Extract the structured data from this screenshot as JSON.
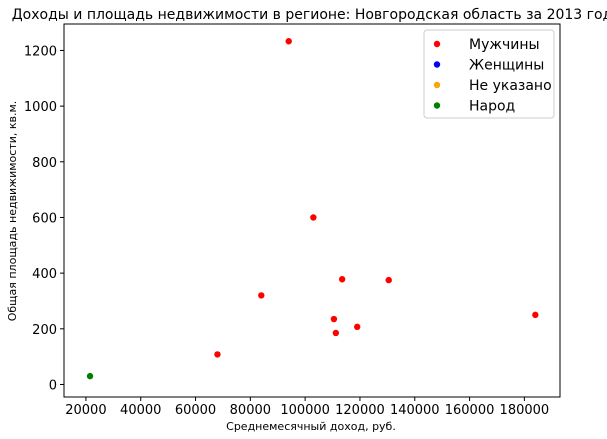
{
  "chart_data": {
    "type": "scatter",
    "title": "Доходы и площадь недвижимости в регионе: Новгородская область за 2013 год",
    "xlabel": "Среднемесячный доход, руб.",
    "ylabel": "Общая площадь недвижимости, кв.м.",
    "xlim": [
      12000,
      193000
    ],
    "ylim": [
      -45,
      1295
    ],
    "xticks": [
      20000,
      40000,
      60000,
      80000,
      100000,
      120000,
      140000,
      160000,
      180000
    ],
    "yticks": [
      0,
      200,
      400,
      600,
      800,
      1000,
      1200
    ],
    "xtick_labels": [
      "20000",
      "40000",
      "60000",
      "80000",
      "100000",
      "120000",
      "140000",
      "160000",
      "180000"
    ],
    "ytick_labels": [
      "0",
      "200",
      "400",
      "600",
      "800",
      "1000",
      "1200"
    ],
    "grid": false,
    "legend_position": "top-right",
    "series": [
      {
        "name": "Мужчины",
        "color": "#ff0000",
        "points": [
          {
            "x": 94000,
            "y": 1233
          },
          {
            "x": 103000,
            "y": 600
          },
          {
            "x": 84000,
            "y": 320
          },
          {
            "x": 68000,
            "y": 108
          },
          {
            "x": 113500,
            "y": 378
          },
          {
            "x": 130500,
            "y": 375
          },
          {
            "x": 110500,
            "y": 235
          },
          {
            "x": 111200,
            "y": 185
          },
          {
            "x": 119000,
            "y": 207
          },
          {
            "x": 184000,
            "y": 250
          }
        ]
      },
      {
        "name": "Женщины",
        "color": "#0000ff",
        "points": []
      },
      {
        "name": "Не указано",
        "color": "#ffa500",
        "points": []
      },
      {
        "name": "Народ",
        "color": "#008000",
        "points": [
          {
            "x": 21500,
            "y": 30
          }
        ]
      }
    ]
  }
}
